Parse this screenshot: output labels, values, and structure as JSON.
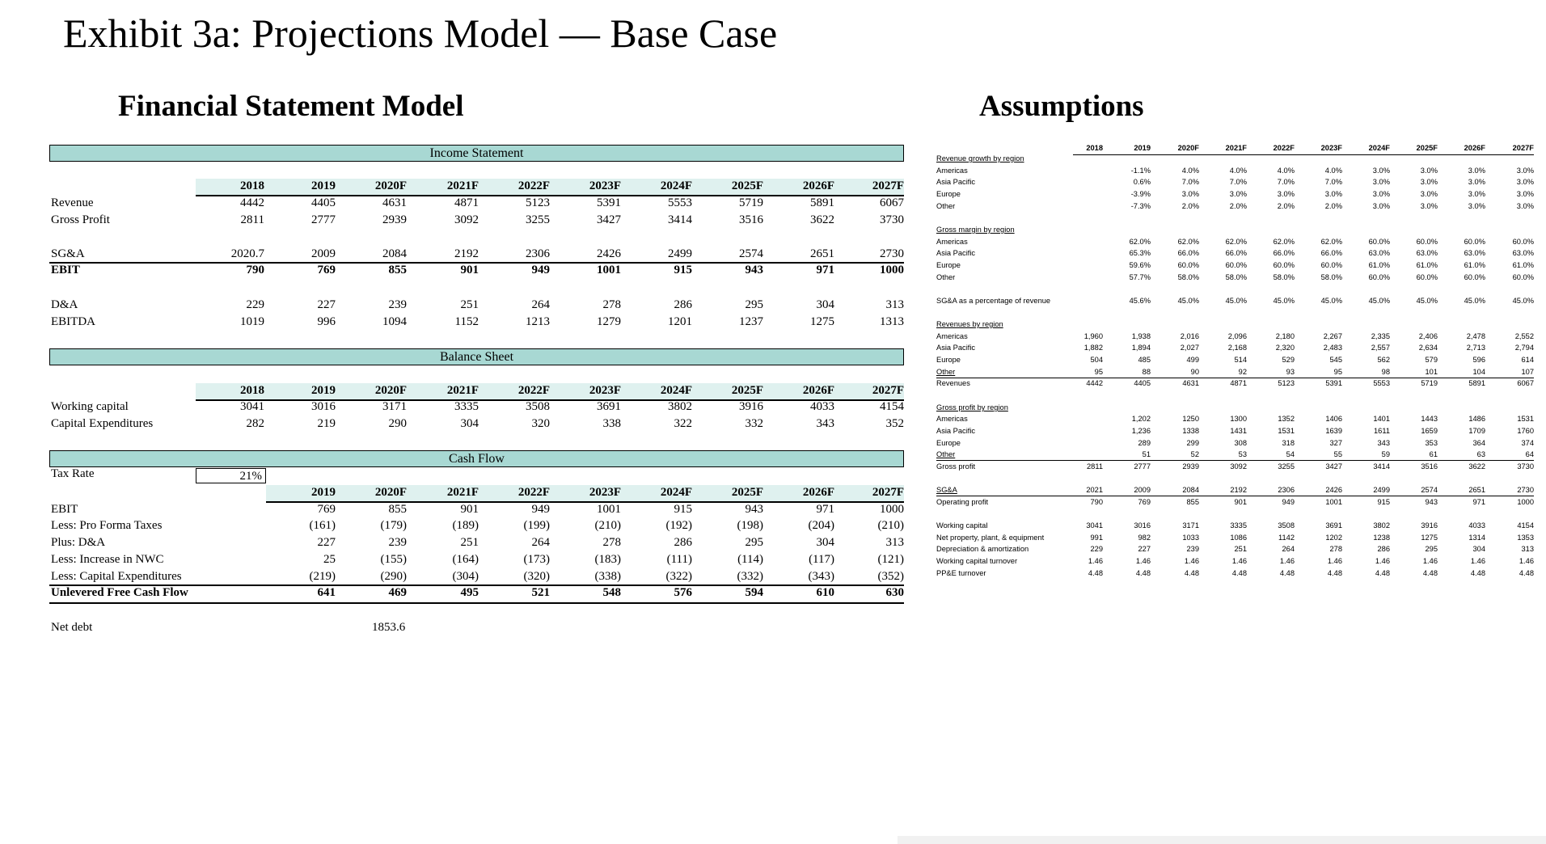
{
  "page": {
    "title": "Exhibit 3a: Projections Model — Base Case",
    "fs_heading": "Financial Statement Model",
    "assumptions_heading": "Assumptions"
  },
  "income_statement": {
    "section": "Income Statement",
    "years": [
      "2018",
      "2019",
      "2020F",
      "2021F",
      "2022F",
      "2023F",
      "2024F",
      "2025F",
      "2026F",
      "2027F"
    ],
    "rows": [
      {
        "label": "Revenue",
        "values": [
          "4442",
          "4405",
          "4631",
          "4871",
          "5123",
          "5391",
          "5553",
          "5719",
          "5891",
          "6067"
        ]
      },
      {
        "label": "Gross Profit",
        "values": [
          "2811",
          "2777",
          "2939",
          "3092",
          "3255",
          "3427",
          "3414",
          "3516",
          "3622",
          "3730"
        ]
      },
      {
        "label": "SG&A",
        "values": [
          "2020.7",
          "2009",
          "2084",
          "2192",
          "2306",
          "2426",
          "2499",
          "2574",
          "2651",
          "2730"
        ]
      },
      {
        "label": "EBIT",
        "values": [
          "790",
          "769",
          "855",
          "901",
          "949",
          "1001",
          "915",
          "943",
          "971",
          "1000"
        ]
      },
      {
        "label": "D&A",
        "values": [
          "229",
          "227",
          "239",
          "251",
          "264",
          "278",
          "286",
          "295",
          "304",
          "313"
        ]
      },
      {
        "label": "EBITDA",
        "values": [
          "1019",
          "996",
          "1094",
          "1152",
          "1213",
          "1279",
          "1201",
          "1237",
          "1275",
          "1313"
        ]
      }
    ]
  },
  "balance_sheet": {
    "section": "Balance Sheet",
    "years": [
      "2018",
      "2019",
      "2020F",
      "2021F",
      "2022F",
      "2023F",
      "2024F",
      "2025F",
      "2026F",
      "2027F"
    ],
    "rows": [
      {
        "label": "Working capital",
        "values": [
          "3041",
          "3016",
          "3171",
          "3335",
          "3508",
          "3691",
          "3802",
          "3916",
          "4033",
          "4154"
        ]
      },
      {
        "label": "Capital Expenditures",
        "values": [
          "282",
          "219",
          "290",
          "304",
          "320",
          "338",
          "322",
          "332",
          "343",
          "352"
        ]
      }
    ]
  },
  "cash_flow": {
    "section": "Cash Flow",
    "tax_label": "Tax Rate",
    "tax_value": "21%",
    "years": [
      "2019",
      "2020F",
      "2021F",
      "2022F",
      "2023F",
      "2024F",
      "2025F",
      "2026F",
      "2027F"
    ],
    "rows": [
      {
        "label": "EBIT",
        "values": [
          "769",
          "855",
          "901",
          "949",
          "1001",
          "915",
          "943",
          "971",
          "1000"
        ]
      },
      {
        "label": "Less: Pro Forma Taxes",
        "values": [
          "(161)",
          "(179)",
          "(189)",
          "(199)",
          "(210)",
          "(192)",
          "(198)",
          "(204)",
          "(210)"
        ]
      },
      {
        "label": "Plus: D&A",
        "values": [
          "227",
          "239",
          "251",
          "264",
          "278",
          "286",
          "295",
          "304",
          "313"
        ]
      },
      {
        "label": "Less: Increase in NWC",
        "values": [
          "25",
          "(155)",
          "(164)",
          "(173)",
          "(183)",
          "(111)",
          "(114)",
          "(117)",
          "(121)"
        ]
      },
      {
        "label": "Less: Capital Expenditures",
        "values": [
          "(219)",
          "(290)",
          "(304)",
          "(320)",
          "(338)",
          "(322)",
          "(332)",
          "(343)",
          "(352)"
        ]
      },
      {
        "label": "Unlevered Free Cash Flow",
        "values": [
          "641",
          "469",
          "495",
          "521",
          "548",
          "576",
          "594",
          "610",
          "630"
        ]
      }
    ],
    "net_debt_label": "Net debt",
    "net_debt_value": "1853.6"
  },
  "assumptions": {
    "years": [
      "2018",
      "2019",
      "2020F",
      "2021F",
      "2022F",
      "2023F",
      "2024F",
      "2025F",
      "2026F",
      "2027F"
    ],
    "rows": [
      {
        "label": "Revenue growth by region",
        "values": [],
        "style": "ul"
      },
      {
        "label": "Americas",
        "values": [
          "",
          "-1.1%",
          "4.0%",
          "4.0%",
          "4.0%",
          "4.0%",
          "3.0%",
          "3.0%",
          "3.0%",
          "3.0%"
        ]
      },
      {
        "label": "Asia Pacific",
        "values": [
          "",
          "0.6%",
          "7.0%",
          "7.0%",
          "7.0%",
          "7.0%",
          "3.0%",
          "3.0%",
          "3.0%",
          "3.0%"
        ]
      },
      {
        "label": "Europe",
        "values": [
          "",
          "-3.9%",
          "3.0%",
          "3.0%",
          "3.0%",
          "3.0%",
          "3.0%",
          "3.0%",
          "3.0%",
          "3.0%"
        ]
      },
      {
        "label": "Other",
        "values": [
          "",
          "-7.3%",
          "2.0%",
          "2.0%",
          "2.0%",
          "2.0%",
          "3.0%",
          "3.0%",
          "3.0%",
          "3.0%"
        ]
      },
      {
        "label": "",
        "values": []
      },
      {
        "label": "Gross margin by region",
        "values": [],
        "style": "ul"
      },
      {
        "label": "Americas",
        "values": [
          "",
          "62.0%",
          "62.0%",
          "62.0%",
          "62.0%",
          "62.0%",
          "60.0%",
          "60.0%",
          "60.0%",
          "60.0%"
        ]
      },
      {
        "label": "Asia Pacific",
        "values": [
          "",
          "65.3%",
          "66.0%",
          "66.0%",
          "66.0%",
          "66.0%",
          "63.0%",
          "63.0%",
          "63.0%",
          "63.0%"
        ]
      },
      {
        "label": "Europe",
        "values": [
          "",
          "59.6%",
          "60.0%",
          "60.0%",
          "60.0%",
          "60.0%",
          "61.0%",
          "61.0%",
          "61.0%",
          "61.0%"
        ]
      },
      {
        "label": "Other",
        "values": [
          "",
          "57.7%",
          "58.0%",
          "58.0%",
          "58.0%",
          "58.0%",
          "60.0%",
          "60.0%",
          "60.0%",
          "60.0%"
        ]
      },
      {
        "label": "",
        "values": []
      },
      {
        "label": "SG&A as a percentage of revenue",
        "values": [
          "",
          "45.6%",
          "45.0%",
          "45.0%",
          "45.0%",
          "45.0%",
          "45.0%",
          "45.0%",
          "45.0%",
          "45.0%"
        ]
      },
      {
        "label": "",
        "values": []
      },
      {
        "label": "Revenues by region",
        "values": [],
        "style": "ul"
      },
      {
        "label": "Americas",
        "values": [
          "1,960",
          "1,938",
          "2,016",
          "2,096",
          "2,180",
          "2,267",
          "2,335",
          "2,406",
          "2,478",
          "2,552"
        ]
      },
      {
        "label": "Asia Pacific",
        "values": [
          "1,882",
          "1,894",
          "2,027",
          "2,168",
          "2,320",
          "2,483",
          "2,557",
          "2,634",
          "2,713",
          "2,794"
        ]
      },
      {
        "label": "Europe",
        "values": [
          "504",
          "485",
          "499",
          "514",
          "529",
          "545",
          "562",
          "579",
          "596",
          "614"
        ]
      },
      {
        "label": "Other",
        "values": [
          "95",
          "88",
          "90",
          "92",
          "93",
          "95",
          "98",
          "101",
          "104",
          "107"
        ],
        "style": "ul-under"
      },
      {
        "label": "Revenues",
        "values": [
          "4442",
          "4405",
          "4631",
          "4871",
          "5123",
          "5391",
          "5553",
          "5719",
          "5891",
          "6067"
        ]
      },
      {
        "label": "",
        "values": []
      },
      {
        "label": "Gross profit by region",
        "values": [],
        "style": "ul"
      },
      {
        "label": "Americas",
        "values": [
          "",
          "1,202",
          "1250",
          "1300",
          "1352",
          "1406",
          "1401",
          "1443",
          "1486",
          "1531"
        ]
      },
      {
        "label": "Asia Pacific",
        "values": [
          "",
          "1,236",
          "1338",
          "1431",
          "1531",
          "1639",
          "1611",
          "1659",
          "1709",
          "1760"
        ]
      },
      {
        "label": "Europe",
        "values": [
          "",
          "289",
          "299",
          "308",
          "318",
          "327",
          "343",
          "353",
          "364",
          "374"
        ]
      },
      {
        "label": "Other",
        "values": [
          "",
          "51",
          "52",
          "53",
          "54",
          "55",
          "59",
          "61",
          "63",
          "64"
        ],
        "style": "ul-under"
      },
      {
        "label": "Gross profit",
        "values": [
          "2811",
          "2777",
          "2939",
          "3092",
          "3255",
          "3427",
          "3414",
          "3516",
          "3622",
          "3730"
        ]
      },
      {
        "label": "",
        "values": []
      },
      {
        "label": "SG&A",
        "values": [
          "2021",
          "2009",
          "2084",
          "2192",
          "2306",
          "2426",
          "2499",
          "2574",
          "2651",
          "2730"
        ],
        "style": "ul-under"
      },
      {
        "label": "Operating profit",
        "values": [
          "790",
          "769",
          "855",
          "901",
          "949",
          "1001",
          "915",
          "943",
          "971",
          "1000"
        ]
      },
      {
        "label": "",
        "values": []
      },
      {
        "label": "Working capital",
        "values": [
          "3041",
          "3016",
          "3171",
          "3335",
          "3508",
          "3691",
          "3802",
          "3916",
          "4033",
          "4154"
        ]
      },
      {
        "label": "Net property, plant, & equipment",
        "values": [
          "991",
          "982",
          "1033",
          "1086",
          "1142",
          "1202",
          "1238",
          "1275",
          "1314",
          "1353"
        ]
      },
      {
        "label": "Depreciation & amortization",
        "values": [
          "229",
          "227",
          "239",
          "251",
          "264",
          "278",
          "286",
          "295",
          "304",
          "313"
        ]
      },
      {
        "label": "Working capital turnover",
        "values": [
          "1.46",
          "1.46",
          "1.46",
          "1.46",
          "1.46",
          "1.46",
          "1.46",
          "1.46",
          "1.46",
          "1.46"
        ]
      },
      {
        "label": "PP&E turnover",
        "values": [
          "4.48",
          "4.48",
          "4.48",
          "4.48",
          "4.48",
          "4.48",
          "4.48",
          "4.48",
          "4.48",
          "4.48"
        ]
      }
    ]
  }
}
